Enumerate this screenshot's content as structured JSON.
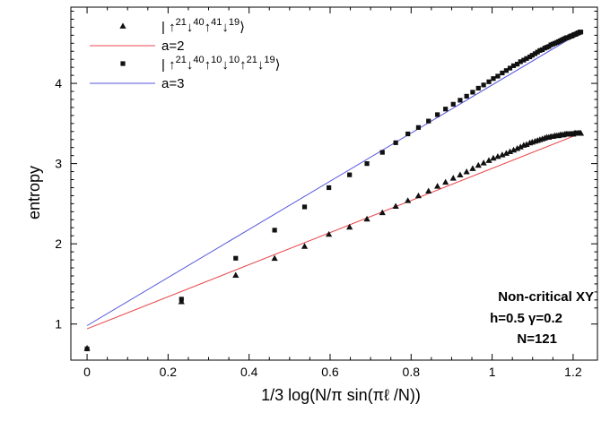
{
  "chart_data": {
    "type": "scatter",
    "title": "",
    "xlabel": "1/3 log(N/π sin(πℓ /N))",
    "ylabel": "entropy",
    "xlim": [
      -0.04,
      1.26
    ],
    "ylim": [
      0.55,
      4.95
    ],
    "x_ticks": [
      0,
      0.2,
      0.4,
      0.6,
      0.8,
      1,
      1.2
    ],
    "x_tick_labels": [
      "0",
      "0.2",
      "0.4",
      "0.6",
      "0.8",
      "1",
      "1.2"
    ],
    "y_ticks": [
      1,
      2,
      3,
      4
    ],
    "y_tick_labels": [
      "1",
      "2",
      "3",
      "4"
    ],
    "grid": false,
    "legend_position": "top-left",
    "lines": [
      {
        "name": "a=2",
        "color": "#e8484c",
        "x": [
          0,
          1.22
        ],
        "y": [
          0.94,
          3.38
        ]
      },
      {
        "name": "a=3",
        "color": "#5555dd",
        "x": [
          0,
          1.22
        ],
        "y": [
          0.98,
          4.64
        ]
      }
    ],
    "series": [
      {
        "name": "triangles",
        "marker": "triangle",
        "color": "#111111",
        "legend": {
          "base": "| ↑",
          "parts": [
            [
              "21",
              "↓"
            ],
            [
              "40",
              "↑"
            ],
            [
              "41",
              "↓"
            ],
            [
              "19",
              "⟩"
            ]
          ]
        },
        "x": [
          0,
          0.233,
          0.367,
          0.463,
          0.537,
          0.597,
          0.648,
          0.691,
          0.729,
          0.762,
          0.792,
          0.818,
          0.843,
          0.865,
          0.885,
          0.904,
          0.921,
          0.937,
          0.952,
          0.966,
          0.979,
          0.992,
          1.003,
          1.014,
          1.025,
          1.035,
          1.044,
          1.053,
          1.062,
          1.07,
          1.078,
          1.085,
          1.093,
          1.099,
          1.106,
          1.112,
          1.118,
          1.124,
          1.13,
          1.135,
          1.14,
          1.145,
          1.15,
          1.155,
          1.16,
          1.164,
          1.168,
          1.172,
          1.176,
          1.18,
          1.184,
          1.187,
          1.191,
          1.194,
          1.197,
          1.2,
          1.203,
          1.206,
          1.209,
          1.212,
          1.214,
          1.217,
          1.219
        ],
        "y": [
          0.7,
          1.28,
          1.61,
          1.82,
          1.97,
          2.12,
          2.21,
          2.31,
          2.39,
          2.47,
          2.54,
          2.6,
          2.66,
          2.72,
          2.77,
          2.82,
          2.86,
          2.9,
          2.94,
          2.98,
          3.01,
          3.04,
          3.07,
          3.09,
          3.11,
          3.13,
          3.15,
          3.17,
          3.19,
          3.21,
          3.23,
          3.24,
          3.26,
          3.27,
          3.28,
          3.29,
          3.3,
          3.31,
          3.32,
          3.33,
          3.33,
          3.34,
          3.34,
          3.35,
          3.35,
          3.35,
          3.36,
          3.36,
          3.36,
          3.37,
          3.37,
          3.37,
          3.37,
          3.37,
          3.37,
          3.37,
          3.38,
          3.38,
          3.38,
          3.38,
          3.38,
          3.38,
          3.38
        ]
      },
      {
        "name": "squares",
        "marker": "square",
        "color": "#111111",
        "legend": {
          "base": "| ↑",
          "parts": [
            [
              "21",
              "↓"
            ],
            [
              "40",
              "↑"
            ],
            [
              "10",
              "↓"
            ],
            [
              "10",
              "↑"
            ],
            [
              "21",
              "↓"
            ],
            [
              "19",
              "⟩"
            ]
          ]
        },
        "x": [
          0,
          0.233,
          0.367,
          0.463,
          0.537,
          0.597,
          0.648,
          0.691,
          0.729,
          0.762,
          0.792,
          0.818,
          0.843,
          0.865,
          0.885,
          0.904,
          0.921,
          0.937,
          0.952,
          0.966,
          0.979,
          0.992,
          1.003,
          1.014,
          1.025,
          1.035,
          1.044,
          1.053,
          1.062,
          1.07,
          1.078,
          1.085,
          1.093,
          1.099,
          1.106,
          1.112,
          1.118,
          1.124,
          1.13,
          1.135,
          1.14,
          1.145,
          1.15,
          1.155,
          1.16,
          1.164,
          1.168,
          1.172,
          1.176,
          1.18,
          1.184,
          1.187,
          1.191,
          1.194,
          1.197,
          1.2,
          1.203,
          1.206,
          1.209,
          1.212,
          1.214,
          1.217,
          1.219
        ],
        "y": [
          0.69,
          1.31,
          1.82,
          2.17,
          2.46,
          2.7,
          2.86,
          3.0,
          3.14,
          3.26,
          3.37,
          3.45,
          3.53,
          3.61,
          3.68,
          3.74,
          3.79,
          3.84,
          3.89,
          3.94,
          3.98,
          4.02,
          4.06,
          4.09,
          4.13,
          4.16,
          4.19,
          4.22,
          4.24,
          4.27,
          4.29,
          4.31,
          4.33,
          4.35,
          4.37,
          4.39,
          4.41,
          4.42,
          4.44,
          4.45,
          4.46,
          4.48,
          4.49,
          4.5,
          4.51,
          4.52,
          4.53,
          4.54,
          4.55,
          4.56,
          4.57,
          4.57,
          4.58,
          4.59,
          4.59,
          4.6,
          4.61,
          4.61,
          4.62,
          4.63,
          4.63,
          4.64,
          4.64
        ]
      }
    ],
    "annotations": [
      "Non-critical XY",
      "h=0.5 γ=0.2",
      "N=121"
    ]
  }
}
